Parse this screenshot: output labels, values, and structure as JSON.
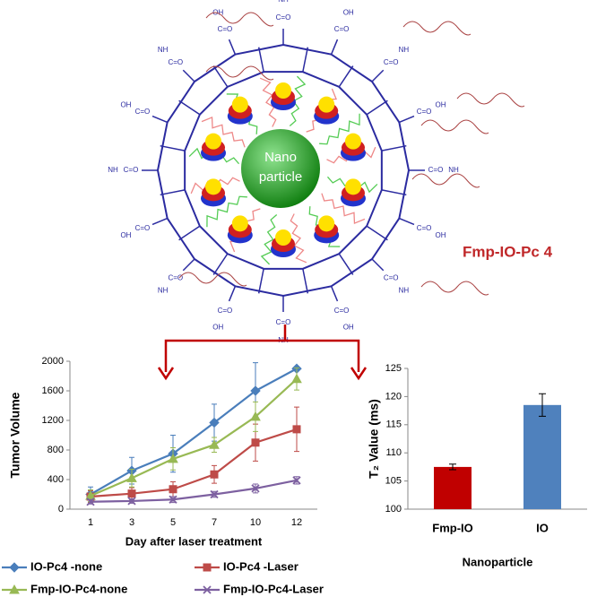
{
  "diagram": {
    "core": [
      "Nano",
      "particle"
    ],
    "label": "Fmp-IO-Pc 4",
    "groups": [
      "C=O",
      "OH",
      "NH"
    ]
  },
  "chart_data": [
    {
      "type": "line",
      "ylabel": "Tumor Volume",
      "xlabel": "Day after laser treatment",
      "categories": [
        "1",
        "3",
        "5",
        "7",
        "10",
        "12"
      ],
      "ylim": [
        0,
        2000
      ],
      "yticks": [
        0,
        400,
        800,
        1200,
        1600,
        2000
      ],
      "series": [
        {
          "name": "IO-Pc4 -none",
          "color": "#4a7ebb",
          "marker": "diamond",
          "values": [
            200,
            520,
            750,
            1170,
            1600,
            1900
          ],
          "errors": [
            100,
            180,
            250,
            250,
            380,
            0
          ]
        },
        {
          "name": "IO-Pc4 -Laser",
          "color": "#be4b48",
          "marker": "square",
          "values": [
            170,
            210,
            270,
            470,
            900,
            1080
          ],
          "errors": [
            80,
            80,
            100,
            120,
            250,
            300
          ]
        },
        {
          "name": "Fmp-IO-Pc4-none",
          "color": "#98b954",
          "marker": "triangle",
          "values": [
            180,
            420,
            680,
            870,
            1250,
            1760
          ],
          "errors": [
            80,
            120,
            150,
            100,
            200,
            150
          ]
        },
        {
          "name": "Fmp-IO-Pc4-Laser",
          "color": "#7d60a0",
          "marker": "x",
          "values": [
            100,
            110,
            130,
            200,
            280,
            390
          ],
          "errors": [
            30,
            30,
            40,
            40,
            60,
            50
          ]
        }
      ]
    },
    {
      "type": "bar",
      "ylabel": "T₂ Value (ms)",
      "xlabel": "Nanoparticle",
      "categories": [
        "Fmp-IO",
        "IO"
      ],
      "values": [
        107.5,
        118.5
      ],
      "errors": [
        0.5,
        2
      ],
      "colors": [
        "#c00000",
        "#4f81bd"
      ],
      "ylim": [
        100,
        125
      ],
      "yticks": [
        100,
        105,
        110,
        115,
        120,
        125
      ]
    }
  ]
}
